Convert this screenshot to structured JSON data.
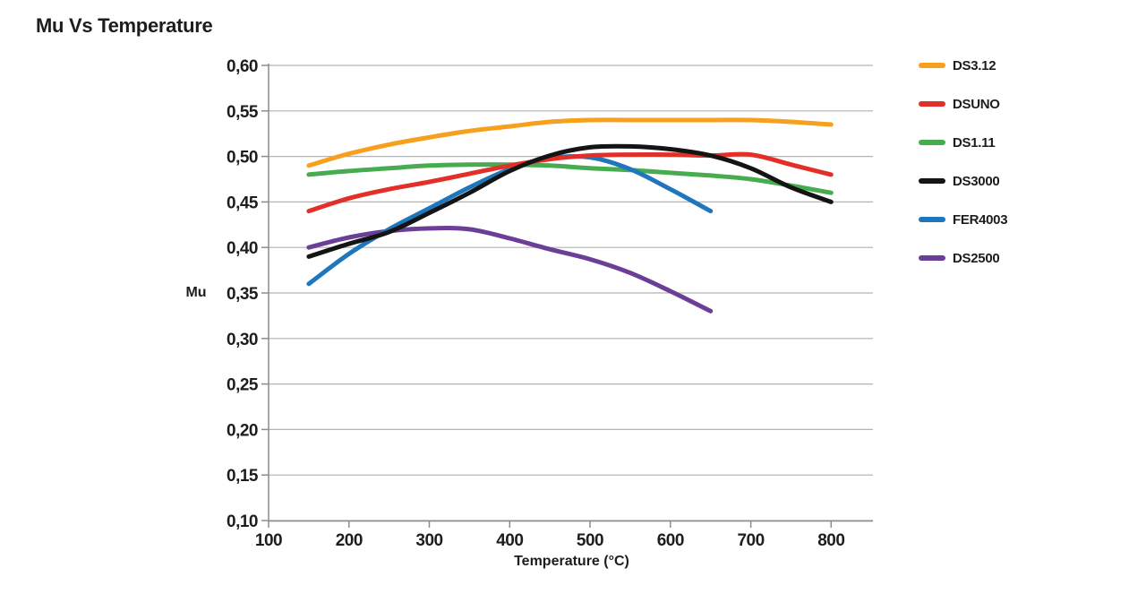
{
  "page": {
    "background": "#ffffff"
  },
  "chart_data": {
    "type": "line",
    "title": "Mu Vs Temperature",
    "xlabel": "Temperature (°C)",
    "ylabel": "Mu",
    "xlim": [
      100,
      852
    ],
    "ylim": [
      0.1,
      0.6
    ],
    "x_ticks": [
      100,
      200,
      300,
      400,
      500,
      600,
      700,
      800
    ],
    "x_tick_labels": [
      "100",
      "200",
      "300",
      "400",
      "500",
      "600",
      "700",
      "800"
    ],
    "y_ticks": [
      0.1,
      0.15,
      0.2,
      0.25,
      0.3,
      0.35,
      0.4,
      0.45,
      0.5,
      0.55,
      0.6
    ],
    "y_tick_labels": [
      "0,10",
      "0,15",
      "0,20",
      "0,25",
      "0,30",
      "0,35",
      "0,40",
      "0,45",
      "0,50",
      "0,55",
      "0,60"
    ],
    "decimal_separator": "comma",
    "grid": "horizontal-only",
    "legend_position": "right",
    "series": [
      {
        "name": "DS3.12",
        "color": "#F6A01E",
        "x": [
          150,
          200,
          250,
          300,
          350,
          400,
          450,
          500,
          550,
          600,
          650,
          700,
          750,
          800
        ],
        "y": [
          0.49,
          0.503,
          0.513,
          0.521,
          0.528,
          0.533,
          0.538,
          0.54,
          0.54,
          0.54,
          0.54,
          0.54,
          0.538,
          0.535
        ]
      },
      {
        "name": "DSUNO",
        "color": "#E23028",
        "x": [
          150,
          200,
          250,
          300,
          350,
          400,
          450,
          500,
          550,
          600,
          650,
          700,
          750,
          800
        ],
        "y": [
          0.44,
          0.454,
          0.464,
          0.472,
          0.481,
          0.49,
          0.497,
          0.501,
          0.502,
          0.502,
          0.501,
          0.502,
          0.491,
          0.48
        ]
      },
      {
        "name": "DS1.11",
        "color": "#47AB50",
        "x": [
          150,
          200,
          250,
          300,
          350,
          400,
          450,
          500,
          550,
          600,
          650,
          700,
          750,
          800
        ],
        "y": [
          0.48,
          0.484,
          0.487,
          0.49,
          0.491,
          0.491,
          0.49,
          0.487,
          0.485,
          0.482,
          0.479,
          0.475,
          0.468,
          0.46
        ]
      },
      {
        "name": "DS3000",
        "color": "#141414",
        "x": [
          150,
          200,
          250,
          300,
          350,
          400,
          450,
          500,
          550,
          600,
          650,
          700,
          750,
          800
        ],
        "y": [
          0.39,
          0.404,
          0.417,
          0.438,
          0.46,
          0.484,
          0.501,
          0.51,
          0.511,
          0.508,
          0.501,
          0.487,
          0.466,
          0.45
        ]
      },
      {
        "name": "FER4003",
        "color": "#1F76BC",
        "x": [
          150,
          200,
          250,
          300,
          350,
          400,
          450,
          500,
          550,
          600,
          650
        ],
        "y": [
          0.36,
          0.393,
          0.42,
          0.443,
          0.466,
          0.486,
          0.498,
          0.499,
          0.486,
          0.464,
          0.44
        ]
      },
      {
        "name": "DS2500",
        "color": "#6B3F98",
        "x": [
          150,
          200,
          250,
          300,
          350,
          400,
          450,
          500,
          550,
          600,
          650
        ],
        "y": [
          0.4,
          0.411,
          0.418,
          0.421,
          0.42,
          0.41,
          0.398,
          0.387,
          0.372,
          0.352,
          0.33
        ]
      }
    ]
  },
  "colors": {
    "text": "#1d1d1b",
    "gridline": "#b3b3b3",
    "axis": "#8c8c8c",
    "background": "#ffffff"
  }
}
